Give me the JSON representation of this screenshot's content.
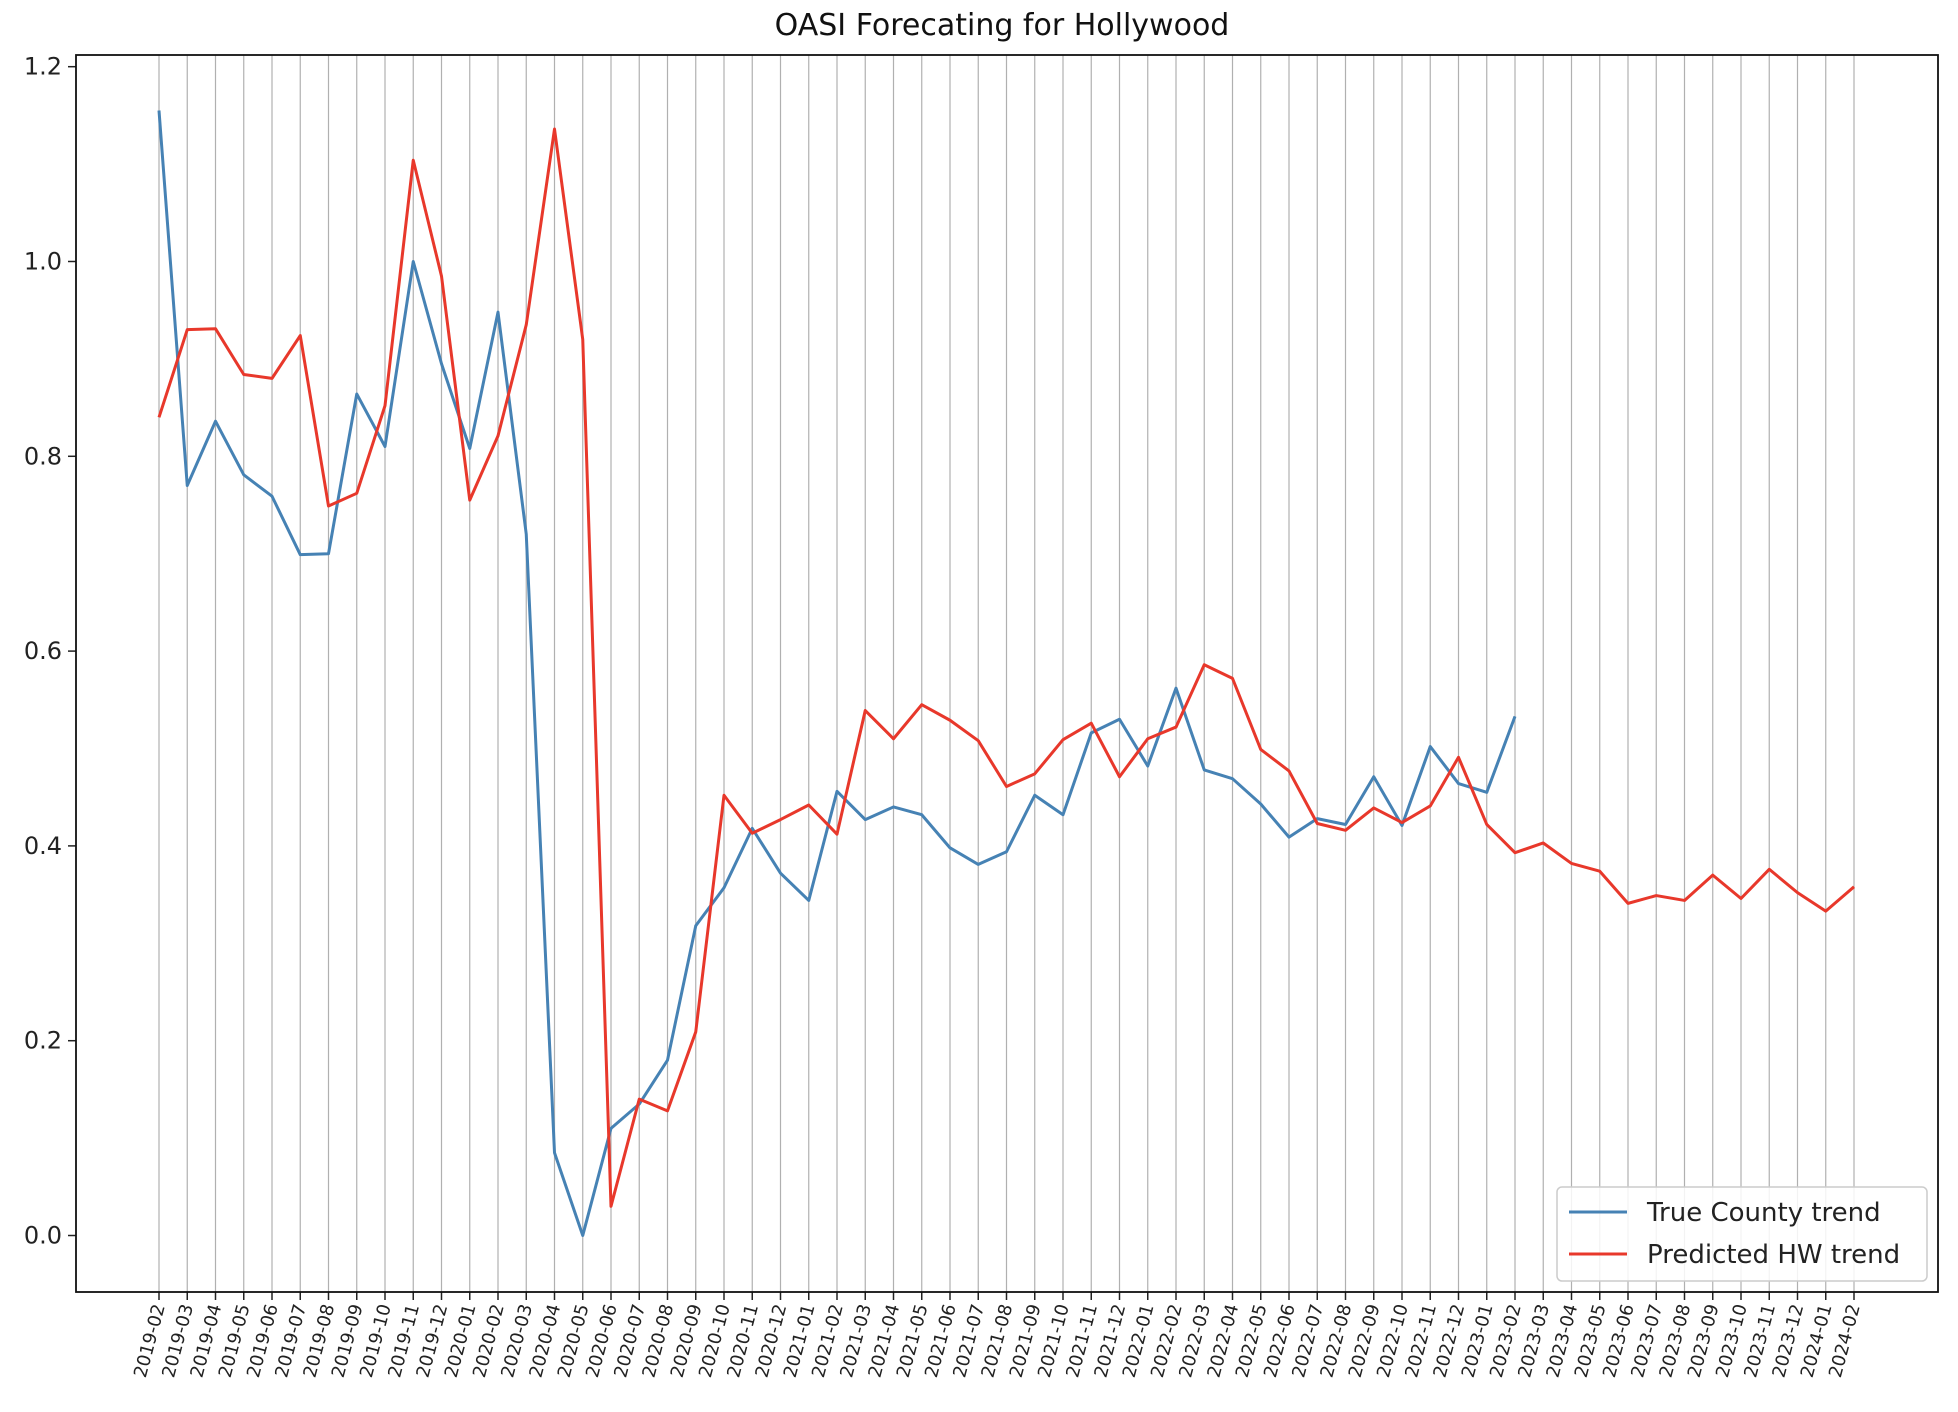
{
  "chart_data": {
    "type": "line",
    "title": "OASI Forecating for Hollywood",
    "xlabel": "",
    "ylabel": "",
    "x": [
      "2019-02",
      "2019-03",
      "2019-04",
      "2019-05",
      "2019-06",
      "2019-07",
      "2019-08",
      "2019-09",
      "2019-10",
      "2019-11",
      "2019-12",
      "2020-01",
      "2020-02",
      "2020-03",
      "2020-04",
      "2020-05",
      "2020-06",
      "2020-07",
      "2020-08",
      "2020-09",
      "2020-10",
      "2020-11",
      "2020-12",
      "2021-01",
      "2021-02",
      "2021-03",
      "2021-04",
      "2021-05",
      "2021-06",
      "2021-07",
      "2021-08",
      "2021-09",
      "2021-10",
      "2021-11",
      "2021-12",
      "2022-01",
      "2022-02",
      "2022-03",
      "2022-04",
      "2022-05",
      "2022-06",
      "2022-07",
      "2022-08",
      "2022-09",
      "2022-10",
      "2022-11",
      "2022-12",
      "2023-01",
      "2023-02",
      "2023-03",
      "2023-04",
      "2023-05",
      "2023-06",
      "2023-07",
      "2023-08",
      "2023-09",
      "2023-10",
      "2023-11",
      "2023-12",
      "2024-01",
      "2024-02"
    ],
    "ylim": [
      -0.058,
      1.212
    ],
    "yticks": [
      0.0,
      0.2,
      0.4,
      0.6,
      0.8,
      1.0,
      1.2
    ],
    "ytick_labels": [
      "0.0",
      "0.2",
      "0.4",
      "0.6",
      "0.8",
      "1.0",
      "1.2"
    ],
    "grid": "vertical",
    "legend_position": "lower-right",
    "series": [
      {
        "name": "True County trend",
        "color": "#4682b4",
        "values": [
          1.155,
          0.77,
          0.836,
          0.781,
          0.759,
          0.699,
          0.7,
          0.864,
          0.81,
          1.0,
          0.895,
          0.808,
          0.948,
          0.72,
          0.085,
          0.0,
          0.11,
          0.135,
          0.18,
          0.318,
          0.357,
          0.418,
          0.372,
          0.344,
          0.456,
          0.427,
          0.44,
          0.432,
          0.398,
          0.381,
          0.394,
          0.452,
          0.432,
          0.516,
          0.53,
          0.482,
          0.562,
          0.478,
          0.469,
          0.443,
          0.409,
          0.428,
          0.422,
          0.471,
          0.421,
          0.502,
          0.464,
          0.455,
          0.533,
          null,
          null,
          null,
          null,
          null,
          null,
          null,
          null,
          null,
          null,
          null,
          null
        ]
      },
      {
        "name": "Predicted HW trend",
        "color": "#e8382b",
        "values": [
          0.84,
          0.93,
          0.931,
          0.884,
          0.88,
          0.924,
          0.749,
          0.762,
          0.852,
          1.104,
          0.985,
          0.755,
          0.821,
          0.935,
          1.136,
          0.92,
          0.03,
          0.14,
          0.128,
          0.209,
          0.452,
          0.413,
          0.427,
          0.442,
          0.412,
          0.539,
          0.51,
          0.545,
          0.529,
          0.508,
          0.461,
          0.474,
          0.509,
          0.526,
          0.471,
          0.51,
          0.522,
          0.586,
          0.572,
          0.499,
          0.477,
          0.423,
          0.416,
          0.439,
          0.424,
          0.441,
          0.491,
          0.422,
          0.393,
          0.403,
          0.382,
          0.374,
          0.341,
          0.349,
          0.344,
          0.37,
          0.346,
          0.376,
          0.352,
          0.333,
          0.358
        ]
      }
    ]
  }
}
